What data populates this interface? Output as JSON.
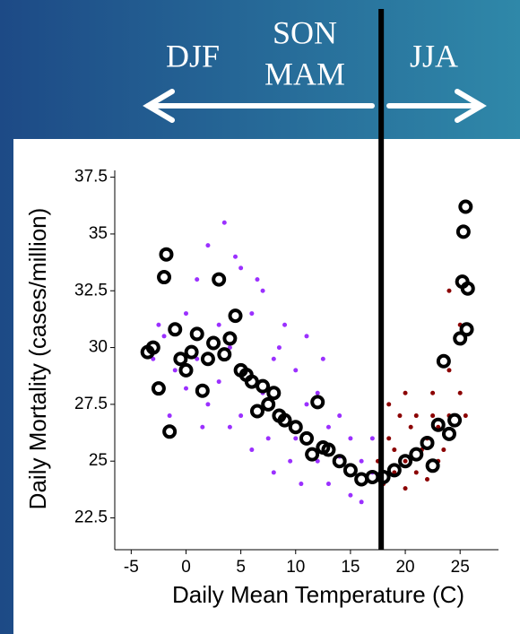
{
  "chart_data": {
    "type": "scatter",
    "xlabel": "Daily Mean Temperature (C)",
    "ylabel": "Daily Mortality (cases/million)",
    "annotations": [
      "DJF",
      "SON",
      "MAM",
      "JJA"
    ],
    "threshold_x": 17.8,
    "xlim": [
      -6.5,
      28.5
    ],
    "xticks": [
      -5,
      0,
      5,
      10,
      15,
      20,
      25
    ],
    "ylim": [
      21.1,
      37.8
    ],
    "yticks": [
      22.5,
      25,
      27.5,
      30,
      32.5,
      35,
      37.5
    ],
    "series": [
      {
        "color": "#9b30ff",
        "marker": "dot",
        "x": [
          -2,
          -1,
          -1.5,
          0,
          0,
          1,
          1,
          2,
          2,
          3,
          3,
          3.5,
          4,
          4,
          5,
          5,
          5.5,
          6,
          6,
          7,
          7,
          7.5,
          8,
          8,
          9,
          9,
          10,
          10,
          10.5,
          11,
          11,
          12,
          12,
          13,
          13,
          14,
          14,
          15,
          15,
          16,
          16,
          17,
          17,
          -3,
          -2.5,
          1.5,
          4.5,
          6.5,
          8.5,
          12.5,
          9.5
        ],
        "values": [
          30.5,
          29,
          27,
          31.5,
          28.2,
          33,
          29.5,
          34.5,
          27.5,
          31,
          28.5,
          35.5,
          26.5,
          30,
          33.5,
          27,
          29,
          31.5,
          25.5,
          28,
          32.5,
          26,
          29.5,
          24.5,
          27,
          31,
          26,
          29,
          24,
          27.5,
          30.5,
          25,
          28,
          26.5,
          24,
          27,
          25.2,
          23.5,
          26,
          25,
          23.2,
          24.5,
          26,
          29.5,
          31,
          26.5,
          34,
          33,
          30,
          29.5,
          25
        ]
      },
      {
        "color": "#8b0000",
        "marker": "dot",
        "x": [
          17.5,
          18,
          18.5,
          19,
          19,
          19.5,
          20,
          20,
          20.5,
          21,
          21,
          21.5,
          22,
          22,
          22.5,
          22.5,
          23,
          23,
          23.5,
          24,
          24,
          24,
          25,
          25,
          25.5,
          18.5,
          20
        ],
        "values": [
          25,
          24,
          26,
          24.5,
          25.5,
          27,
          23.8,
          25,
          26.5,
          24.5,
          27,
          25.5,
          26,
          24.2,
          28,
          27,
          25,
          26.5,
          25.5,
          29,
          27,
          32.5,
          28,
          31,
          27,
          27.5,
          28
        ]
      },
      {
        "color": "#000000",
        "marker": "ring",
        "x": [
          -3.5,
          -3,
          -2.5,
          -2,
          -1.8,
          -1.5,
          -1,
          -0.5,
          0,
          0.5,
          1,
          1.5,
          2,
          2.5,
          3,
          3.5,
          4,
          4.5,
          5,
          5.5,
          6,
          6.5,
          7,
          7.5,
          8,
          8.5,
          9,
          10,
          11,
          11.5,
          12,
          12.5,
          13,
          14,
          15,
          16,
          17,
          18,
          19,
          20,
          21,
          22,
          22.5,
          23,
          23.5,
          24,
          24.5,
          25,
          25.2,
          25.3,
          25.5,
          25.6,
          25.7
        ],
        "values": [
          29.8,
          30,
          28.2,
          33.1,
          34.1,
          26.3,
          30.8,
          29.5,
          29,
          29.8,
          30.6,
          28.1,
          29.5,
          30.2,
          33,
          29.7,
          30.4,
          31.4,
          29,
          28.8,
          28.5,
          27.2,
          28.3,
          27.5,
          28,
          27,
          26.8,
          26.5,
          26,
          25.3,
          27.6,
          25.6,
          25.5,
          25,
          24.6,
          24.2,
          24.3,
          24.3,
          24.6,
          25,
          25.3,
          25.8,
          24.8,
          26.6,
          29.4,
          26.2,
          26.8,
          30.4,
          32.9,
          35.1,
          36.2,
          30.8,
          32.6
        ]
      }
    ]
  }
}
